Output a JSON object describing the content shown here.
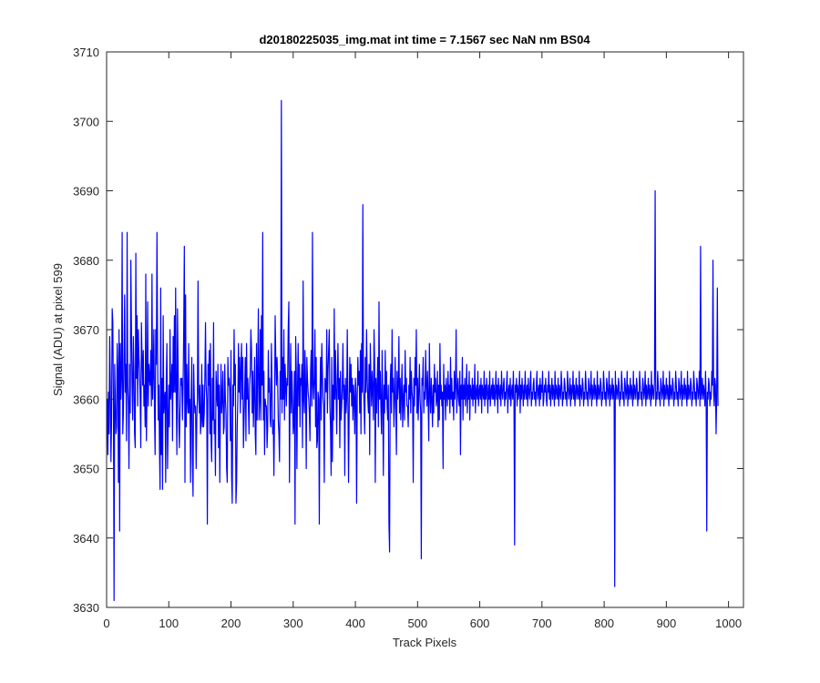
{
  "chart_data": {
    "type": "line",
    "title": "d20180225035_img.mat int time = 7.1567 sec  NaN nm BS04",
    "xlabel": "Track Pixels",
    "ylabel": "Signal (ADU) at pixel 599",
    "xlim": [
      0,
      1024
    ],
    "ylim": [
      3630,
      3710
    ],
    "xticks": [
      "0",
      "100",
      "200",
      "300",
      "400",
      "500",
      "600",
      "700",
      "800",
      "900",
      "1000"
    ],
    "yticks": [
      "3630",
      "3640",
      "3650",
      "3660",
      "3670",
      "3680",
      "3690",
      "3700",
      "3710"
    ],
    "grid": false,
    "legend": "none",
    "line_color": "#0000ff",
    "series": [
      {
        "x_start": 1,
        "x_step": 1,
        "values": [
          3660,
          3652,
          3661,
          3655,
          3669,
          3662,
          3651,
          3657,
          3673,
          3671,
          3659,
          3631,
          3665,
          3660,
          3655,
          3656,
          3668,
          3664,
          3648,
          3670,
          3641,
          3668,
          3660,
          3663,
          3684,
          3655,
          3658,
          3666,
          3675,
          3661,
          3665,
          3654,
          3684,
          3662,
          3659,
          3650,
          3665,
          3658,
          3680,
          3670,
          3662,
          3657,
          3669,
          3664,
          3655,
          3653,
          3681,
          3663,
          3672,
          3659,
          3670,
          3666,
          3664,
          3660,
          3653,
          3671,
          3666,
          3662,
          3667,
          3659,
          3662,
          3656,
          3678,
          3654,
          3661,
          3674,
          3659,
          3665,
          3663,
          3662,
          3667,
          3659,
          3678,
          3660,
          3664,
          3670,
          3658,
          3652,
          3670,
          3665,
          3684,
          3667,
          3657,
          3662,
          3653,
          3647,
          3676,
          3652,
          3663,
          3647,
          3672,
          3658,
          3660,
          3661,
          3648,
          3663,
          3668,
          3650,
          3656,
          3662,
          3656,
          3670,
          3660,
          3662,
          3665,
          3654,
          3669,
          3661,
          3672,
          3661,
          3676,
          3660,
          3652,
          3673,
          3664,
          3657,
          3653,
          3658,
          3663,
          3662,
          3663,
          3657,
          3662,
          3670,
          3682,
          3648,
          3675,
          3656,
          3665,
          3660,
          3658,
          3668,
          3658,
          3660,
          3648,
          3660,
          3666,
          3651,
          3646,
          3665,
          3660,
          3658,
          3659,
          3650,
          3657,
          3660,
          3677,
          3661,
          3658,
          3662,
          3655,
          3657,
          3665,
          3656,
          3662,
          3656,
          3658,
          3663,
          3671,
          3662,
          3660,
          3642,
          3665,
          3662,
          3667,
          3655,
          3668,
          3654,
          3651,
          3663,
          3657,
          3671,
          3655,
          3657,
          3649,
          3664,
          3661,
          3659,
          3665,
          3653,
          3662,
          3648,
          3659,
          3665,
          3658,
          3660,
          3664,
          3655,
          3656,
          3665,
          3660,
          3658,
          3650,
          3648,
          3666,
          3662,
          3663,
          3661,
          3654,
          3667,
          3649,
          3645,
          3662,
          3659,
          3670,
          3662,
          3665,
          3645,
          3648,
          3656,
          3660,
          3668,
          3661,
          3666,
          3658,
          3664,
          3668,
          3660,
          3666,
          3653,
          3657,
          3661,
          3666,
          3654,
          3668,
          3660,
          3663,
          3659,
          3655,
          3662,
          3664,
          3670,
          3667,
          3658,
          3664,
          3656,
          3661,
          3666,
          3655,
          3652,
          3668,
          3657,
          3664,
          3673,
          3657,
          3660,
          3670,
          3657,
          3672,
          3662,
          3684,
          3657,
          3664,
          3652,
          3660,
          3659,
          3659,
          3653,
          3656,
          3667,
          3661,
          3663,
          3657,
          3656,
          3668,
          3662,
          3655,
          3657,
          3649,
          3657,
          3672,
          3666,
          3662,
          3666,
          3663,
          3657,
          3655,
          3651,
          3664,
          3660,
          3703,
          3658,
          3666,
          3660,
          3670,
          3657,
          3665,
          3662,
          3659,
          3663,
          3662,
          3670,
          3674,
          3648,
          3660,
          3668,
          3658,
          3664,
          3660,
          3655,
          3657,
          3664,
          3642,
          3669,
          3664,
          3650,
          3662,
          3668,
          3659,
          3665,
          3656,
          3663,
          3662,
          3665,
          3653,
          3677,
          3660,
          3658,
          3667,
          3662,
          3650,
          3666,
          3663,
          3661,
          3660,
          3658,
          3654,
          3664,
          3667,
          3659,
          3684,
          3662,
          3660,
          3663,
          3670,
          3656,
          3666,
          3653,
          3654,
          3661,
          3660,
          3642,
          3660,
          3666,
          3657,
          3668,
          3664,
          3660,
          3659,
          3648,
          3663,
          3662,
          3661,
          3670,
          3658,
          3664,
          3667,
          3670,
          3659,
          3656,
          3649,
          3666,
          3651,
          3662,
          3657,
          3673,
          3660,
          3667,
          3661,
          3655,
          3663,
          3668,
          3660,
          3663,
          3653,
          3664,
          3657,
          3659,
          3662,
          3668,
          3660,
          3662,
          3649,
          3663,
          3658,
          3660,
          3670,
          3660,
          3648,
          3658,
          3666,
          3661,
          3665,
          3659,
          3663,
          3657,
          3662,
          3660,
          3655,
          3663,
          3661,
          3645,
          3660,
          3666,
          3662,
          3664,
          3658,
          3667,
          3655,
          3668,
          3661,
          3688,
          3662,
          3659,
          3655,
          3666,
          3661,
          3670,
          3663,
          3660,
          3658,
          3665,
          3652,
          3668,
          3663,
          3659,
          3664,
          3661,
          3657,
          3670,
          3665,
          3648,
          3663,
          3658,
          3662,
          3666,
          3656,
          3674,
          3660,
          3664,
          3659,
          3655,
          3667,
          3660,
          3649,
          3662,
          3658,
          3667,
          3660,
          3664,
          3659,
          3657,
          3662,
          3642,
          3638,
          3662,
          3665,
          3658,
          3670,
          3661,
          3663,
          3656,
          3660,
          3666,
          3659,
          3652,
          3664,
          3660,
          3662,
          3669,
          3658,
          3663,
          3657,
          3661,
          3665,
          3656,
          3660,
          3662,
          3657,
          3667,
          3661,
          3663,
          3659,
          3659,
          3656,
          3662,
          3660,
          3666,
          3658,
          3664,
          3661,
          3660,
          3648,
          3663,
          3659,
          3666,
          3662,
          3670,
          3658,
          3663,
          3657,
          3661,
          3665,
          3660,
          3658,
          3637,
          3663,
          3662,
          3666,
          3658,
          3661,
          3660,
          3667,
          3662,
          3659,
          3664,
          3660,
          3654,
          3668,
          3661,
          3658,
          3663,
          3660,
          3656,
          3662,
          3658,
          3665,
          3661,
          3663,
          3659,
          3660,
          3664,
          3656,
          3662,
          3657,
          3668,
          3660,
          3662,
          3659,
          3661,
          3650,
          3665,
          3660,
          3662,
          3657,
          3663,
          3661,
          3659,
          3664,
          3660,
          3662,
          3658,
          3666,
          3660,
          3663,
          3659,
          3661,
          3657,
          3664,
          3660,
          3662,
          3670,
          3658,
          3661,
          3663,
          3660,
          3659,
          3664,
          3652,
          3662,
          3660,
          3666,
          3657,
          3662,
          3660,
          3663,
          3659,
          3661,
          3665,
          3658,
          3662,
          3660,
          3664,
          3657,
          3662,
          3661,
          3660,
          3663,
          3659,
          3662,
          3660,
          3665,
          3658,
          3661,
          3662,
          3660,
          3664,
          3659,
          3661,
          3662,
          3660,
          3663,
          3658,
          3662,
          3661,
          3660,
          3664,
          3659,
          3662,
          3660,
          3663,
          3661,
          3658,
          3662,
          3660,
          3664,
          3659,
          3661,
          3662,
          3660,
          3663,
          3660,
          3662,
          3659,
          3661,
          3664,
          3660,
          3662,
          3658,
          3663,
          3661,
          3660,
          3662,
          3659,
          3664,
          3661,
          3660,
          3662,
          3663,
          3659,
          3661,
          3660,
          3662,
          3664,
          3658,
          3661,
          3662,
          3660,
          3663,
          3659,
          3661,
          3662,
          3660,
          3664,
          3660,
          3639,
          3662,
          3661,
          3663,
          3659,
          3662,
          3660,
          3661,
          3664,
          3658,
          3662,
          3660,
          3663,
          3661,
          3659,
          3662,
          3660,
          3664,
          3661,
          3660,
          3662,
          3659,
          3663,
          3661,
          3660,
          3662,
          3664,
          3659,
          3661,
          3660,
          3662,
          3663,
          3660,
          3661,
          3659,
          3662,
          3664,
          3660,
          3661,
          3662,
          3659,
          3663,
          3660,
          3662,
          3661,
          3664,
          3659,
          3660,
          3662,
          3661,
          3663,
          3660,
          3659,
          3662,
          3661,
          3664,
          3660,
          3662,
          3659,
          3661,
          3663,
          3660,
          3662,
          3661,
          3659,
          3664,
          3660,
          3662,
          3661,
          3660,
          3663,
          3659,
          3662,
          3661,
          3660,
          3664,
          3662,
          3659,
          3661,
          3660,
          3663,
          3662,
          3660,
          3661,
          3659,
          3664,
          3662,
          3660,
          3661,
          3663,
          3659,
          3662,
          3660,
          3661,
          3664,
          3660,
          3662,
          3659,
          3661,
          3663,
          3660,
          3662,
          3661,
          3660,
          3664,
          3659,
          3662,
          3661,
          3660,
          3663,
          3662,
          3659,
          3661,
          3660,
          3664,
          3662,
          3660,
          3661,
          3659,
          3663,
          3662,
          3660,
          3661,
          3664,
          3659,
          3662,
          3660,
          3661,
          3663,
          3660,
          3662,
          3661,
          3659,
          3664,
          3660,
          3662,
          3661,
          3660,
          3663,
          3662,
          3659,
          3661,
          3660,
          3664,
          3662,
          3660,
          3661,
          3659,
          3663,
          3662,
          3660,
          3661,
          3664,
          3659,
          3662,
          3660,
          3661,
          3663,
          3660,
          3662,
          3661,
          3633,
          3664,
          3660,
          3662,
          3661,
          3660,
          3663,
          3662,
          3659,
          3661,
          3660,
          3664,
          3662,
          3660,
          3661,
          3659,
          3663,
          3662,
          3660,
          3661,
          3664,
          3659,
          3662,
          3660,
          3661,
          3663,
          3660,
          3662,
          3661,
          3659,
          3664,
          3660,
          3662,
          3661,
          3660,
          3663,
          3662,
          3659,
          3661,
          3660,
          3664,
          3662,
          3660,
          3661,
          3659,
          3663,
          3662,
          3660,
          3661,
          3664,
          3659,
          3662,
          3660,
          3661,
          3663,
          3660,
          3662,
          3661,
          3659,
          3664,
          3660,
          3662,
          3661,
          3660,
          3663,
          3690,
          3659,
          3661,
          3660,
          3664,
          3662,
          3660,
          3661,
          3659,
          3663,
          3662,
          3660,
          3661,
          3664,
          3659,
          3662,
          3660,
          3661,
          3663,
          3660,
          3662,
          3661,
          3659,
          3664,
          3660,
          3662,
          3661,
          3660,
          3663,
          3662,
          3659,
          3661,
          3660,
          3664,
          3662,
          3660,
          3661,
          3659,
          3663,
          3662,
          3660,
          3661,
          3664,
          3659,
          3662,
          3660,
          3661,
          3663,
          3660,
          3662,
          3661,
          3659,
          3664,
          3660,
          3662,
          3661,
          3660,
          3663,
          3662,
          3659,
          3661,
          3660,
          3664,
          3662,
          3660,
          3661,
          3659,
          3663,
          3662,
          3660,
          3661,
          3664,
          3659,
          3682,
          3660,
          3661,
          3663,
          3660,
          3662,
          3661,
          3659,
          3664,
          3660,
          3641,
          3661,
          3660,
          3663,
          3662,
          3659,
          3661,
          3660,
          3664,
          3662,
          3680,
          3661,
          3659,
          3663,
          3662,
          3655,
          3661,
          3676,
          3659
        ]
      }
    ]
  }
}
